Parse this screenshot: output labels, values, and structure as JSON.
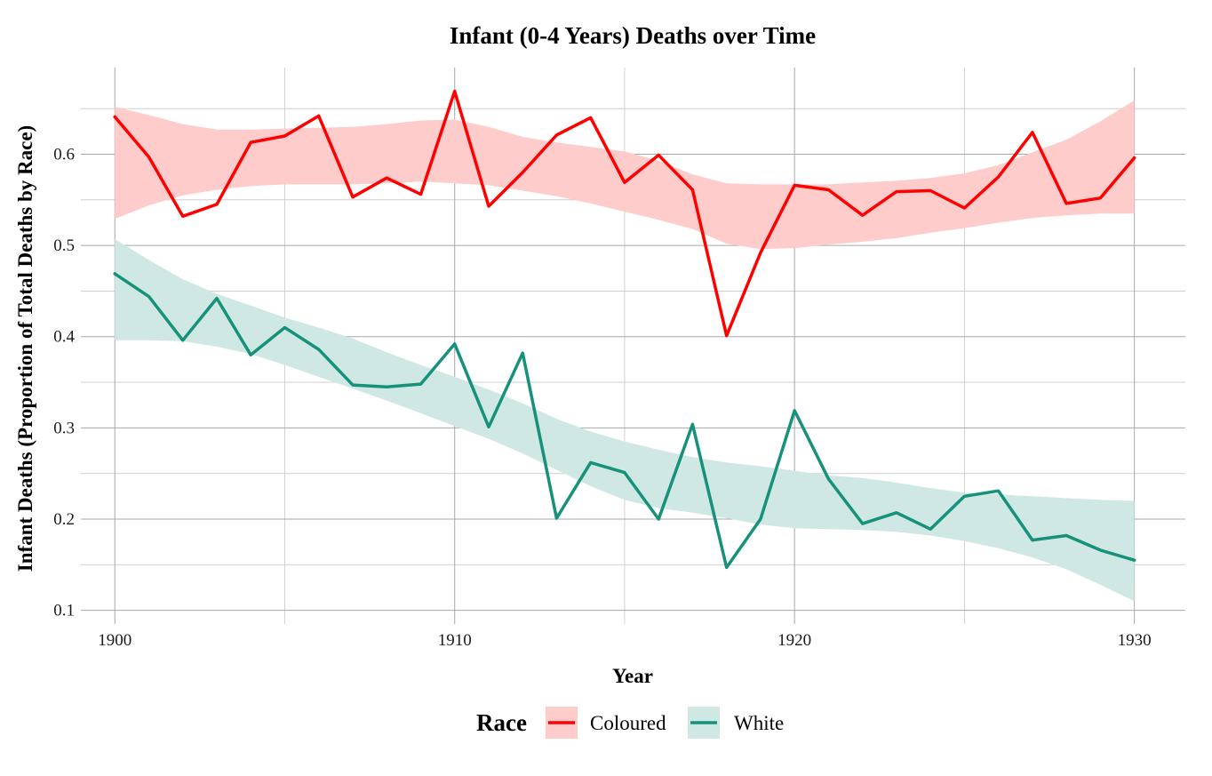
{
  "chart_data": {
    "type": "line",
    "title": "Infant (0-4 Years) Deaths over Time",
    "xlabel": "Year",
    "ylabel": "Infant Deaths (Proportion of Total Deaths by Race)",
    "xlim": [
      1899,
      1931.5
    ],
    "ylim": [
      0.085,
      0.695
    ],
    "x_ticks": [
      1900,
      1910,
      1920,
      1930
    ],
    "y_ticks": [
      0.1,
      0.2,
      0.3,
      0.4,
      0.5,
      0.6
    ],
    "grid": true,
    "legend": {
      "title": "Race",
      "position": "bottom"
    },
    "x": [
      1900,
      1901,
      1902,
      1903,
      1904,
      1905,
      1906,
      1907,
      1908,
      1909,
      1910,
      1911,
      1912,
      1913,
      1914,
      1915,
      1916,
      1917,
      1918,
      1919,
      1920,
      1921,
      1922,
      1923,
      1924,
      1925,
      1926,
      1927,
      1928,
      1929,
      1930
    ],
    "series": [
      {
        "name": "Coloured",
        "color": "#ff0000",
        "band_color": "#ffcccc",
        "values": [
          0.641,
          0.597,
          0.532,
          0.545,
          0.613,
          0.62,
          0.642,
          0.553,
          0.574,
          0.556,
          0.669,
          0.543,
          0.58,
          0.621,
          0.64,
          0.569,
          0.599,
          0.561,
          0.401,
          0.492,
          0.566,
          0.561,
          0.533,
          0.559,
          0.56,
          0.541,
          0.575,
          0.624,
          0.546,
          0.552,
          0.596
        ],
        "band_upper": [
          0.652,
          0.643,
          0.633,
          0.627,
          0.627,
          0.628,
          0.629,
          0.63,
          0.633,
          0.637,
          0.638,
          0.63,
          0.619,
          0.613,
          0.608,
          0.603,
          0.593,
          0.578,
          0.568,
          0.567,
          0.567,
          0.567,
          0.569,
          0.571,
          0.574,
          0.579,
          0.588,
          0.602,
          0.616,
          0.636,
          0.659
        ],
        "band_lower": [
          0.529,
          0.544,
          0.555,
          0.561,
          0.565,
          0.567,
          0.567,
          0.567,
          0.568,
          0.57,
          0.568,
          0.566,
          0.56,
          0.554,
          0.546,
          0.537,
          0.528,
          0.518,
          0.502,
          0.496,
          0.497,
          0.501,
          0.504,
          0.508,
          0.514,
          0.519,
          0.525,
          0.53,
          0.533,
          0.535,
          0.535
        ],
        "smooth": [
          0.591,
          0.594,
          0.594,
          0.594,
          0.596,
          0.597,
          0.598,
          0.598,
          0.6,
          0.603,
          0.603,
          0.598,
          0.59,
          0.583,
          0.577,
          0.57,
          0.561,
          0.548,
          0.535,
          0.531,
          0.532,
          0.534,
          0.536,
          0.54,
          0.544,
          0.549,
          0.556,
          0.566,
          0.575,
          0.585,
          0.597
        ]
      },
      {
        "name": "White",
        "color": "#16917a",
        "band_color": "#cfe8e3",
        "values": [
          0.469,
          0.444,
          0.396,
          0.442,
          0.38,
          0.41,
          0.386,
          0.347,
          0.345,
          0.348,
          0.392,
          0.301,
          0.382,
          0.201,
          0.262,
          0.251,
          0.2,
          0.304,
          0.147,
          0.2,
          0.319,
          0.244,
          0.195,
          0.207,
          0.189,
          0.225,
          0.231,
          0.177,
          0.182,
          0.166,
          0.155
        ],
        "band_upper": [
          0.507,
          0.484,
          0.463,
          0.447,
          0.434,
          0.421,
          0.41,
          0.398,
          0.383,
          0.369,
          0.356,
          0.342,
          0.327,
          0.31,
          0.296,
          0.285,
          0.276,
          0.268,
          0.262,
          0.258,
          0.253,
          0.248,
          0.245,
          0.24,
          0.234,
          0.229,
          0.227,
          0.225,
          0.223,
          0.221,
          0.22
        ],
        "band_lower": [
          0.396,
          0.396,
          0.395,
          0.389,
          0.381,
          0.369,
          0.356,
          0.343,
          0.33,
          0.316,
          0.302,
          0.288,
          0.272,
          0.254,
          0.236,
          0.221,
          0.212,
          0.207,
          0.201,
          0.194,
          0.19,
          0.189,
          0.188,
          0.186,
          0.182,
          0.176,
          0.168,
          0.158,
          0.145,
          0.128,
          0.11
        ]
      }
    ]
  }
}
